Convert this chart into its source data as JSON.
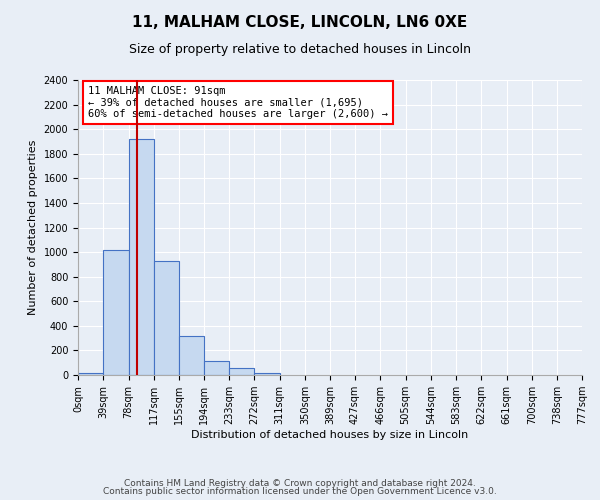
{
  "title": "11, MALHAM CLOSE, LINCOLN, LN6 0XE",
  "subtitle": "Size of property relative to detached houses in Lincoln",
  "xlabel": "Distribution of detached houses by size in Lincoln",
  "ylabel": "Number of detached properties",
  "bin_labels": [
    "0sqm",
    "39sqm",
    "78sqm",
    "117sqm",
    "155sqm",
    "194sqm",
    "233sqm",
    "272sqm",
    "311sqm",
    "350sqm",
    "389sqm",
    "427sqm",
    "466sqm",
    "505sqm",
    "544sqm",
    "583sqm",
    "622sqm",
    "661sqm",
    "700sqm",
    "738sqm",
    "777sqm"
  ],
  "bin_edges": [
    0,
    39,
    78,
    117,
    155,
    194,
    233,
    272,
    311,
    350,
    389,
    427,
    466,
    505,
    544,
    583,
    622,
    661,
    700,
    738,
    777
  ],
  "bar_heights": [
    20,
    1020,
    1920,
    930,
    320,
    110,
    55,
    20,
    0,
    0,
    0,
    0,
    0,
    0,
    0,
    0,
    0,
    0,
    0,
    0
  ],
  "bar_color": "#c6d9f0",
  "bar_edgecolor": "#4472c4",
  "ylim": [
    0,
    2400
  ],
  "yticks": [
    0,
    200,
    400,
    600,
    800,
    1000,
    1200,
    1400,
    1600,
    1800,
    2000,
    2200,
    2400
  ],
  "property_line_x": 91,
  "property_line_color": "#c00000",
  "annotation_box_text": "11 MALHAM CLOSE: 91sqm\n← 39% of detached houses are smaller (1,695)\n60% of semi-detached houses are larger (2,600) →",
  "footer_line1": "Contains HM Land Registry data © Crown copyright and database right 2024.",
  "footer_line2": "Contains public sector information licensed under the Open Government Licence v3.0.",
  "background_color": "#e8eef6",
  "plot_bg_color": "#e8eef6",
  "grid_color": "#ffffff",
  "title_fontsize": 11,
  "subtitle_fontsize": 9,
  "label_fontsize": 8,
  "tick_fontsize": 7,
  "footer_fontsize": 6.5
}
